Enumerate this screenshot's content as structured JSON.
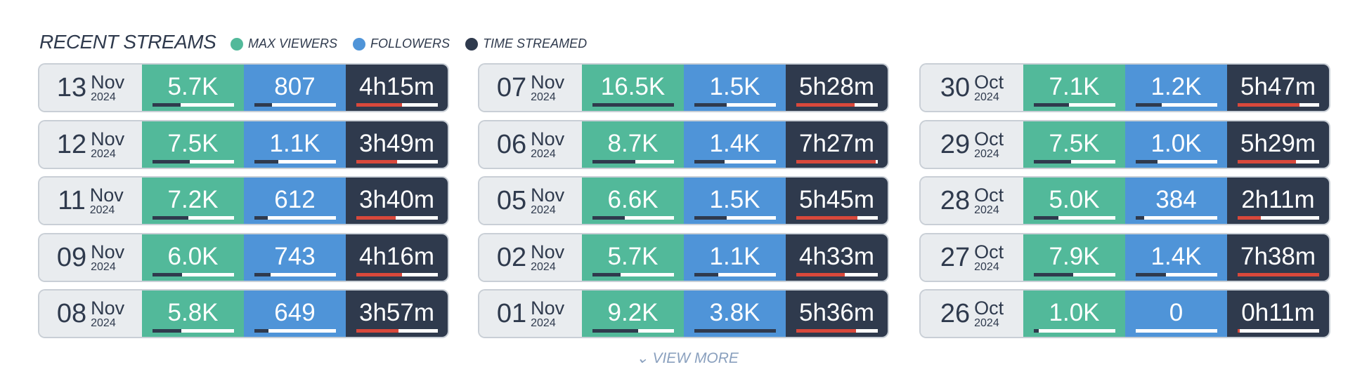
{
  "header": {
    "title": "RECENT STREAMS",
    "legend": [
      "MAX VIEWERS",
      "FOLLOWERS",
      "TIME STREAMED"
    ]
  },
  "streams": [
    {
      "day": "13",
      "month": "Nov",
      "year": "2024",
      "max_viewers": {
        "value": 5700,
        "label": "5.7K"
      },
      "followers": {
        "value": 807,
        "label": "807"
      },
      "time_streamed": {
        "value": 255,
        "label": "4h15m"
      }
    },
    {
      "day": "12",
      "month": "Nov",
      "year": "2024",
      "max_viewers": {
        "value": 7500,
        "label": "7.5K"
      },
      "followers": {
        "value": 1100,
        "label": "1.1K"
      },
      "time_streamed": {
        "value": 229,
        "label": "3h49m"
      }
    },
    {
      "day": "11",
      "month": "Nov",
      "year": "2024",
      "max_viewers": {
        "value": 7200,
        "label": "7.2K"
      },
      "followers": {
        "value": 612,
        "label": "612"
      },
      "time_streamed": {
        "value": 220,
        "label": "3h40m"
      }
    },
    {
      "day": "09",
      "month": "Nov",
      "year": "2024",
      "max_viewers": {
        "value": 6000,
        "label": "6.0K"
      },
      "followers": {
        "value": 743,
        "label": "743"
      },
      "time_streamed": {
        "value": 256,
        "label": "4h16m"
      }
    },
    {
      "day": "08",
      "month": "Nov",
      "year": "2024",
      "max_viewers": {
        "value": 5800,
        "label": "5.8K"
      },
      "followers": {
        "value": 649,
        "label": "649"
      },
      "time_streamed": {
        "value": 237,
        "label": "3h57m"
      }
    },
    {
      "day": "07",
      "month": "Nov",
      "year": "2024",
      "max_viewers": {
        "value": 16500,
        "label": "16.5K"
      },
      "followers": {
        "value": 1500,
        "label": "1.5K"
      },
      "time_streamed": {
        "value": 328,
        "label": "5h28m"
      }
    },
    {
      "day": "06",
      "month": "Nov",
      "year": "2024",
      "max_viewers": {
        "value": 8700,
        "label": "8.7K"
      },
      "followers": {
        "value": 1400,
        "label": "1.4K"
      },
      "time_streamed": {
        "value": 447,
        "label": "7h27m"
      }
    },
    {
      "day": "05",
      "month": "Nov",
      "year": "2024",
      "max_viewers": {
        "value": 6600,
        "label": "6.6K"
      },
      "followers": {
        "value": 1500,
        "label": "1.5K"
      },
      "time_streamed": {
        "value": 345,
        "label": "5h45m"
      }
    },
    {
      "day": "02",
      "month": "Nov",
      "year": "2024",
      "max_viewers": {
        "value": 5700,
        "label": "5.7K"
      },
      "followers": {
        "value": 1100,
        "label": "1.1K"
      },
      "time_streamed": {
        "value": 273,
        "label": "4h33m"
      }
    },
    {
      "day": "01",
      "month": "Nov",
      "year": "2024",
      "max_viewers": {
        "value": 9200,
        "label": "9.2K"
      },
      "followers": {
        "value": 3800,
        "label": "3.8K"
      },
      "time_streamed": {
        "value": 336,
        "label": "5h36m"
      }
    },
    {
      "day": "30",
      "month": "Oct",
      "year": "2024",
      "max_viewers": {
        "value": 7100,
        "label": "7.1K"
      },
      "followers": {
        "value": 1200,
        "label": "1.2K"
      },
      "time_streamed": {
        "value": 347,
        "label": "5h47m"
      }
    },
    {
      "day": "29",
      "month": "Oct",
      "year": "2024",
      "max_viewers": {
        "value": 7500,
        "label": "7.5K"
      },
      "followers": {
        "value": 1000,
        "label": "1.0K"
      },
      "time_streamed": {
        "value": 329,
        "label": "5h29m"
      }
    },
    {
      "day": "28",
      "month": "Oct",
      "year": "2024",
      "max_viewers": {
        "value": 5000,
        "label": "5.0K"
      },
      "followers": {
        "value": 384,
        "label": "384"
      },
      "time_streamed": {
        "value": 131,
        "label": "2h11m"
      }
    },
    {
      "day": "27",
      "month": "Oct",
      "year": "2024",
      "max_viewers": {
        "value": 7900,
        "label": "7.9K"
      },
      "followers": {
        "value": 1400,
        "label": "1.4K"
      },
      "time_streamed": {
        "value": 458,
        "label": "7h38m"
      }
    },
    {
      "day": "26",
      "month": "Oct",
      "year": "2024",
      "max_viewers": {
        "value": 1000,
        "label": "1.0K"
      },
      "followers": {
        "value": 0,
        "label": "0"
      },
      "time_streamed": {
        "value": 11,
        "label": "0h11m"
      }
    }
  ],
  "view_more": "VIEW MORE"
}
